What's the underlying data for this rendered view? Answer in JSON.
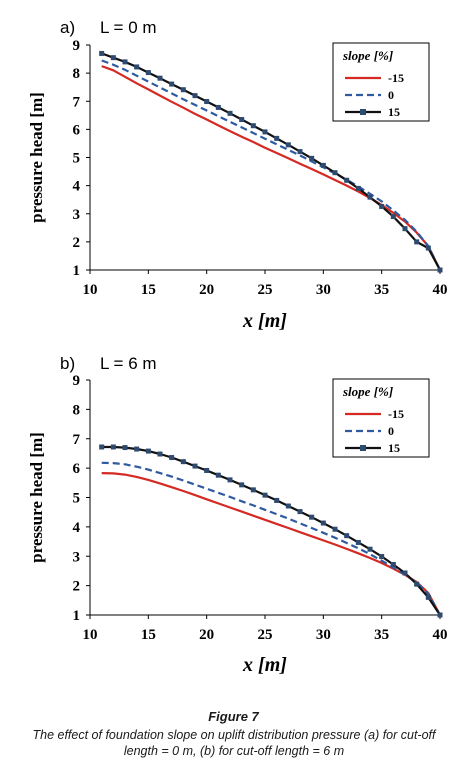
{
  "figure": {
    "title": "Figure 7",
    "caption": "The effect of foundation slope on uplift distribution pressure (a) for cut-off length = 0 m, (b) for cut-off length = 6 m"
  },
  "colors": {
    "s_neg15": "#d42a23",
    "s_0": "#2f5aa0",
    "s_15": "#111111",
    "marker": "#2e4a6e"
  },
  "chart_data": [
    {
      "type": "line",
      "panel_label": "a)",
      "title": "L = 0 m",
      "xlabel": "x [m]",
      "ylabel": "pressure head [m]",
      "xlim": [
        10,
        40
      ],
      "ylim": [
        1,
        9
      ],
      "xticks": [
        "10",
        "15",
        "20",
        "25",
        "30",
        "35",
        "40"
      ],
      "yticks": [
        "1",
        "2",
        "3",
        "4",
        "5",
        "6",
        "7",
        "8",
        "9"
      ],
      "legend_title": "slope [%]",
      "legend_position": "top-right",
      "series": [
        {
          "name": "-15",
          "x": [
            11,
            12,
            13,
            14,
            15,
            16,
            17,
            18,
            19,
            20,
            21,
            22,
            23,
            24,
            25,
            26,
            27,
            28,
            29,
            30,
            31,
            32,
            33,
            34,
            35,
            36,
            37,
            38,
            39,
            40
          ],
          "y": [
            8.25,
            8.1,
            7.87,
            7.64,
            7.42,
            7.2,
            6.98,
            6.77,
            6.55,
            6.35,
            6.14,
            5.94,
            5.74,
            5.55,
            5.35,
            5.16,
            4.97,
            4.78,
            4.59,
            4.4,
            4.2,
            4.0,
            3.79,
            3.56,
            3.31,
            3.03,
            2.72,
            2.33,
            1.85,
            1.0
          ]
        },
        {
          "name": "0",
          "x": [
            11,
            12,
            13,
            14,
            15,
            16,
            17,
            18,
            19,
            20,
            21,
            22,
            23,
            24,
            25,
            26,
            27,
            28,
            29,
            30,
            31,
            32,
            33,
            34,
            35,
            36,
            37,
            38,
            39,
            40
          ],
          "y": [
            8.45,
            8.3,
            8.12,
            7.91,
            7.7,
            7.49,
            7.28,
            7.07,
            6.87,
            6.67,
            6.47,
            6.27,
            6.07,
            5.87,
            5.67,
            5.47,
            5.27,
            5.07,
            4.86,
            4.65,
            4.43,
            4.21,
            3.97,
            3.71,
            3.44,
            3.12,
            2.78,
            2.36,
            1.85,
            1.0
          ]
        },
        {
          "name": "15",
          "x": [
            11,
            12,
            13,
            14,
            15,
            16,
            17,
            18,
            19,
            20,
            21,
            22,
            23,
            24,
            25,
            26,
            27,
            28,
            29,
            30,
            31,
            32,
            33,
            34,
            35,
            36,
            37,
            38,
            39,
            40
          ],
          "y": [
            8.7,
            8.55,
            8.4,
            8.22,
            8.02,
            7.82,
            7.61,
            7.41,
            7.2,
            6.99,
            6.78,
            6.57,
            6.35,
            6.13,
            5.91,
            5.68,
            5.45,
            5.21,
            4.97,
            4.72,
            4.46,
            4.19,
            3.9,
            3.59,
            3.26,
            2.9,
            2.47,
            2.0,
            1.78,
            1.0
          ]
        }
      ]
    },
    {
      "type": "line",
      "panel_label": "b)",
      "title": "L = 6 m",
      "xlabel": "x [m]",
      "ylabel": "pressure head [m]",
      "xlim": [
        10,
        40
      ],
      "ylim": [
        1,
        9
      ],
      "xticks": [
        "10",
        "15",
        "20",
        "25",
        "30",
        "35",
        "40"
      ],
      "yticks": [
        "1",
        "2",
        "3",
        "4",
        "5",
        "6",
        "7",
        "8",
        "9"
      ],
      "legend_title": "slope [%]",
      "legend_position": "top-right",
      "series": [
        {
          "name": "-15",
          "x": [
            11,
            12,
            13,
            14,
            15,
            16,
            17,
            18,
            19,
            20,
            21,
            22,
            23,
            24,
            25,
            26,
            27,
            28,
            29,
            30,
            31,
            32,
            33,
            34,
            35,
            36,
            37,
            38,
            39,
            40
          ],
          "y": [
            5.83,
            5.82,
            5.78,
            5.7,
            5.6,
            5.48,
            5.35,
            5.22,
            5.08,
            4.94,
            4.8,
            4.66,
            4.52,
            4.38,
            4.24,
            4.1,
            3.96,
            3.82,
            3.68,
            3.54,
            3.4,
            3.25,
            3.1,
            2.94,
            2.77,
            2.58,
            2.37,
            2.12,
            1.75,
            1.0
          ]
        },
        {
          "name": "0",
          "x": [
            11,
            12,
            13,
            14,
            15,
            16,
            17,
            18,
            19,
            20,
            21,
            22,
            23,
            24,
            25,
            26,
            27,
            28,
            29,
            30,
            31,
            32,
            33,
            34,
            35,
            36,
            37,
            38,
            39,
            40
          ],
          "y": [
            6.18,
            6.17,
            6.13,
            6.05,
            5.95,
            5.83,
            5.71,
            5.58,
            5.44,
            5.3,
            5.16,
            5.02,
            4.87,
            4.73,
            4.58,
            4.43,
            4.28,
            4.12,
            3.96,
            3.8,
            3.63,
            3.45,
            3.27,
            3.07,
            2.85,
            2.62,
            2.38,
            2.1,
            1.72,
            1.0
          ]
        },
        {
          "name": "15",
          "x": [
            11,
            12,
            13,
            14,
            15,
            16,
            17,
            18,
            19,
            20,
            21,
            22,
            23,
            24,
            25,
            26,
            27,
            28,
            29,
            30,
            31,
            32,
            33,
            34,
            35,
            36,
            37,
            38,
            39,
            40
          ],
          "y": [
            6.72,
            6.72,
            6.7,
            6.65,
            6.58,
            6.48,
            6.36,
            6.22,
            6.07,
            5.92,
            5.76,
            5.6,
            5.43,
            5.26,
            5.08,
            4.9,
            4.71,
            4.52,
            4.33,
            4.13,
            3.92,
            3.7,
            3.47,
            3.24,
            2.99,
            2.72,
            2.43,
            2.05,
            1.6,
            1.0
          ]
        }
      ]
    }
  ]
}
